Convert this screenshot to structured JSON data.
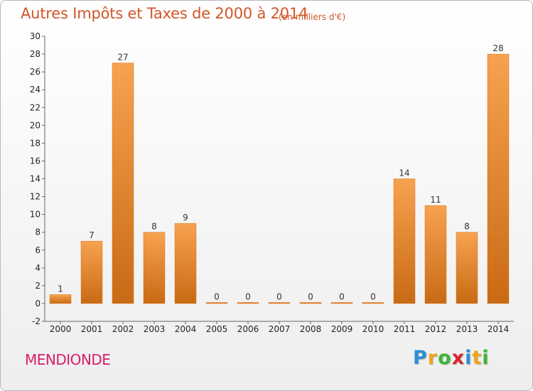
{
  "chart_data": {
    "type": "bar",
    "title": "Autres Impôts et Taxes de 2000 à 2014",
    "subtitle": "(en milliers d'€)",
    "categories": [
      "2000",
      "2001",
      "2002",
      "2003",
      "2004",
      "2005",
      "2006",
      "2007",
      "2008",
      "2009",
      "2010",
      "2011",
      "2012",
      "2013",
      "2014"
    ],
    "values": [
      1,
      7,
      27,
      8,
      9,
      0,
      0,
      0,
      0,
      0,
      0,
      14,
      11,
      8,
      28
    ],
    "xlabel": "",
    "ylabel": "",
    "ylim": [
      -2,
      30
    ],
    "yticks": [
      -2,
      0,
      2,
      4,
      6,
      8,
      10,
      12,
      14,
      16,
      18,
      20,
      22,
      24,
      26,
      28,
      30
    ],
    "grid": false,
    "legend": "none",
    "bar_color": "#f0892e"
  },
  "commune": "MENDIONDE",
  "logo": {
    "letters": [
      {
        "ch": "P",
        "color": "#2a8fd6"
      },
      {
        "ch": "r",
        "color": "#f3a21a"
      },
      {
        "ch": "o",
        "color": "#3db535"
      },
      {
        "ch": "x",
        "color": "#d9262b"
      },
      {
        "ch": "i",
        "color": "#2a8fd6"
      },
      {
        "ch": "t",
        "color": "#f3a21a"
      },
      {
        "ch": "i",
        "color": "#3db535"
      }
    ]
  }
}
